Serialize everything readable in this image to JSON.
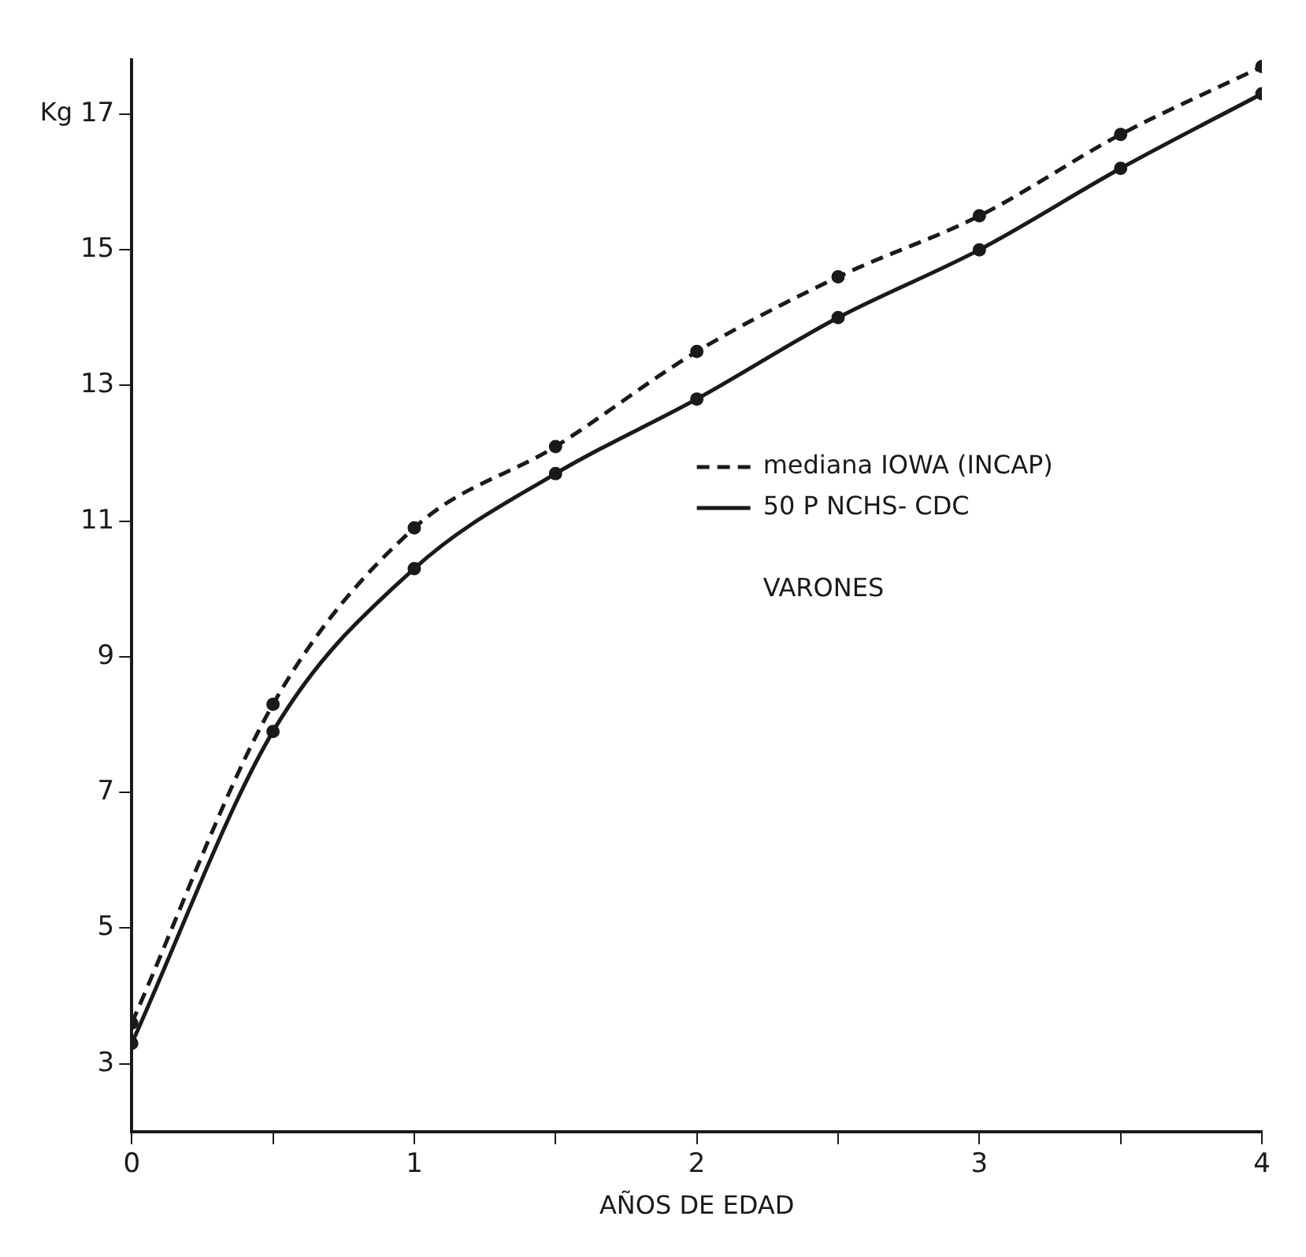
{
  "chart_data": {
    "type": "line",
    "xlabel": "AÑOS DE EDAD",
    "ylabel": "Kg",
    "annotations": [
      "VARONES"
    ],
    "x": [
      0,
      0.5,
      1,
      1.5,
      2,
      2.5,
      3,
      3.5,
      4
    ],
    "series": [
      {
        "name": "mediana IOWA (INCAP)",
        "color": "#1a1a1a",
        "line_style": "dashed",
        "values": [
          3.6,
          8.3,
          10.9,
          12.1,
          13.5,
          14.6,
          15.5,
          16.7,
          17.7
        ]
      },
      {
        "name": "50 P NCHS- CDC",
        "color": "#1a1a1a",
        "line_style": "solid",
        "values": [
          3.3,
          7.9,
          10.3,
          11.7,
          12.8,
          14.0,
          15.0,
          16.2,
          17.3
        ]
      }
    ],
    "xlim": [
      0,
      4
    ],
    "xticks": [
      0,
      {
        "value": 0.5,
        "label": null
      },
      1,
      {
        "value": 1.5,
        "label": null
      },
      2,
      {
        "value": 2.5,
        "label": null
      },
      3,
      {
        "value": 3.5,
        "label": null
      },
      4
    ],
    "ylim": [
      2,
      17.8
    ],
    "yticks": [
      3,
      5,
      7,
      9,
      11,
      13,
      15,
      17
    ],
    "marker": "circle",
    "grid": false,
    "legend": "right"
  }
}
